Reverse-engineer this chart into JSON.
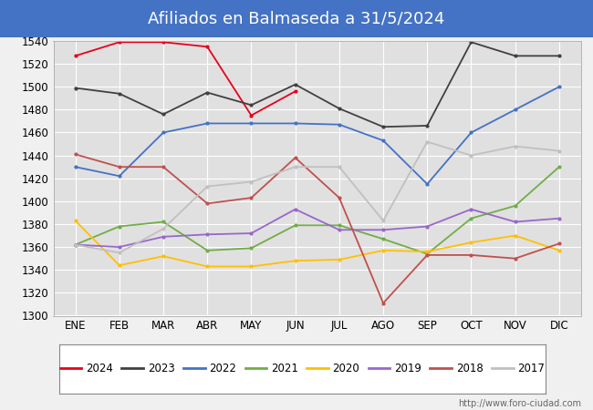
{
  "title": "Afiliados en Balmaseda a 31/5/2024",
  "title_bg_color": "#4472c4",
  "title_text_color": "white",
  "ylim": [
    1300,
    1540
  ],
  "yticks": [
    1300,
    1320,
    1340,
    1360,
    1380,
    1400,
    1420,
    1440,
    1460,
    1480,
    1500,
    1520,
    1540
  ],
  "months": [
    "ENE",
    "FEB",
    "MAR",
    "ABR",
    "MAY",
    "JUN",
    "JUL",
    "AGO",
    "SEP",
    "OCT",
    "NOV",
    "DIC"
  ],
  "series": {
    "2024": {
      "color": "#e8001c",
      "data": [
        1527,
        1539,
        1539,
        1535,
        1475,
        1496,
        null,
        null,
        null,
        null,
        null,
        null
      ]
    },
    "2023": {
      "color": "#404040",
      "data": [
        1499,
        1494,
        1476,
        1495,
        1484,
        1502,
        1481,
        1465,
        1466,
        1539,
        1527,
        1527
      ]
    },
    "2022": {
      "color": "#4472c4",
      "data": [
        1430,
        1422,
        1460,
        1468,
        1468,
        1468,
        1467,
        1453,
        1415,
        1460,
        1480,
        1500
      ]
    },
    "2021": {
      "color": "#70ad47",
      "data": [
        1362,
        1378,
        1382,
        1357,
        1359,
        1379,
        1379,
        1367,
        1354,
        1385,
        1396,
        1430
      ]
    },
    "2020": {
      "color": "#ffc000",
      "data": [
        1383,
        1344,
        1352,
        1343,
        1343,
        1348,
        1349,
        1357,
        1356,
        1364,
        1370,
        1357
      ]
    },
    "2019": {
      "color": "#9966cc",
      "data": [
        1362,
        1360,
        1369,
        1371,
        1372,
        1393,
        1375,
        1375,
        1378,
        1393,
        1382,
        1385
      ]
    },
    "2018": {
      "color": "#c0504d",
      "data": [
        1441,
        1430,
        1430,
        1398,
        1403,
        1438,
        1403,
        1311,
        1353,
        1353,
        1350,
        1363
      ]
    },
    "2017": {
      "color": "#c0c0c0",
      "data": [
        1362,
        1355,
        1376,
        1413,
        1417,
        1430,
        1430,
        1383,
        1452,
        1440,
        1448,
        1444
      ]
    }
  },
  "legend_order": [
    "2024",
    "2023",
    "2022",
    "2021",
    "2020",
    "2019",
    "2018",
    "2017"
  ],
  "background_color": "#f0f0f0",
  "plot_bg_color": "#e0e0e0",
  "grid_color": "white",
  "footnote": "http://www.foro-ciudad.com"
}
